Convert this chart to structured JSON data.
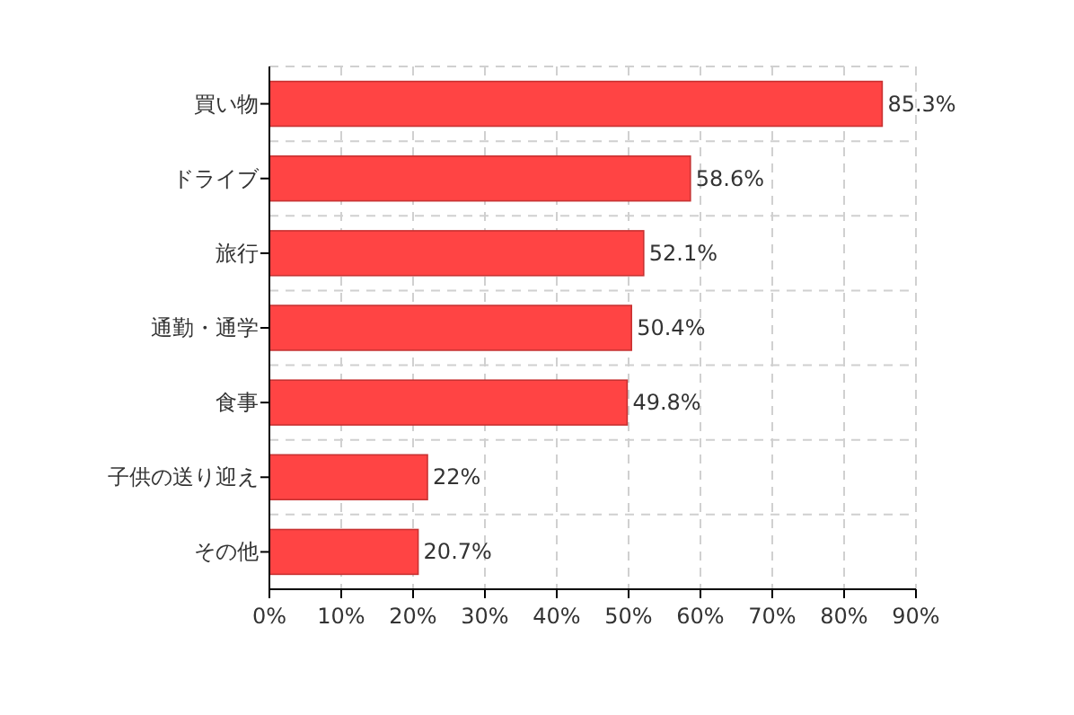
{
  "chart_data": {
    "type": "bar",
    "orientation": "horizontal",
    "categories": [
      "買い物",
      "ドライブ",
      "旅行",
      "通勤・通学",
      "食事",
      "子供の送り迎え",
      "その他"
    ],
    "values": [
      85.3,
      58.6,
      52.1,
      50.4,
      49.8,
      22,
      20.7
    ],
    "value_labels": [
      "85.3%",
      "58.6%",
      "52.1%",
      "50.4%",
      "49.8%",
      "22%",
      "20.7%"
    ],
    "color": "#ff4444",
    "xlim": [
      0,
      90
    ],
    "xticks": [
      {
        "value": 0,
        "label": "0%"
      },
      {
        "value": 10,
        "label": "10%"
      },
      {
        "value": 20,
        "label": "20%"
      },
      {
        "value": 30,
        "label": "30%"
      },
      {
        "value": 40,
        "label": "40%"
      },
      {
        "value": 50,
        "label": "50%"
      },
      {
        "value": 60,
        "label": "60%"
      },
      {
        "value": 70,
        "label": "70%"
      },
      {
        "value": 80,
        "label": "80%"
      },
      {
        "value": 90,
        "label": "90%"
      }
    ],
    "grid": true
  }
}
